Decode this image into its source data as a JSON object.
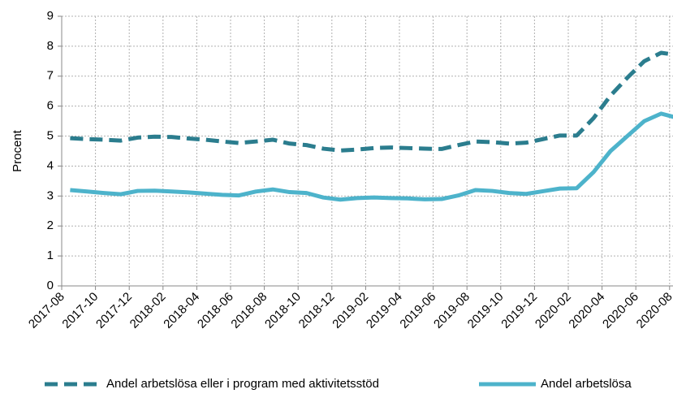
{
  "chart_data": {
    "type": "line",
    "y_label": "Procent",
    "categories": [
      "2017-08",
      null,
      "2017-10",
      null,
      "2017-12",
      null,
      "2018-02",
      null,
      "2018-04",
      null,
      "2018-06",
      null,
      "2018-08",
      null,
      "2018-10",
      null,
      "2018-12",
      null,
      "2019-02",
      null,
      "2019-04",
      null,
      "2019-06",
      null,
      "2019-08",
      null,
      "2019-10",
      null,
      "2019-12",
      null,
      "2020-02",
      null,
      "2020-04",
      null,
      "2020-06",
      null,
      "2020-08"
    ],
    "series": [
      {
        "name": "Andel arbetslösa eller i program med aktivitetsstöd",
        "color": "#2b7d8e",
        "dashed": true,
        "values": [
          4.93,
          4.9,
          4.88,
          4.85,
          4.95,
          4.98,
          4.97,
          4.92,
          4.88,
          4.82,
          4.77,
          4.82,
          4.88,
          4.75,
          4.7,
          4.58,
          4.52,
          4.55,
          4.6,
          4.62,
          4.6,
          4.58,
          4.57,
          4.7,
          4.82,
          4.8,
          4.75,
          4.78,
          4.9,
          5.02,
          5.02,
          5.6,
          6.35,
          6.95,
          7.5,
          7.78,
          7.7
        ]
      },
      {
        "name": "Andel arbetslösa",
        "color": "#4db3cb",
        "dashed": false,
        "values": [
          3.2,
          3.15,
          3.1,
          3.06,
          3.17,
          3.18,
          3.15,
          3.12,
          3.08,
          3.04,
          3.02,
          3.15,
          3.22,
          3.13,
          3.1,
          2.95,
          2.88,
          2.93,
          2.95,
          2.93,
          2.92,
          2.89,
          2.9,
          3.02,
          3.2,
          3.17,
          3.1,
          3.07,
          3.16,
          3.25,
          3.26,
          3.8,
          4.5,
          5.0,
          5.5,
          5.75,
          5.6
        ]
      }
    ],
    "ylim": [
      0,
      9
    ],
    "yticks": [
      0,
      1,
      2,
      3,
      4,
      5,
      6,
      7,
      8,
      9
    ],
    "grid": true,
    "legend": "bottom"
  }
}
